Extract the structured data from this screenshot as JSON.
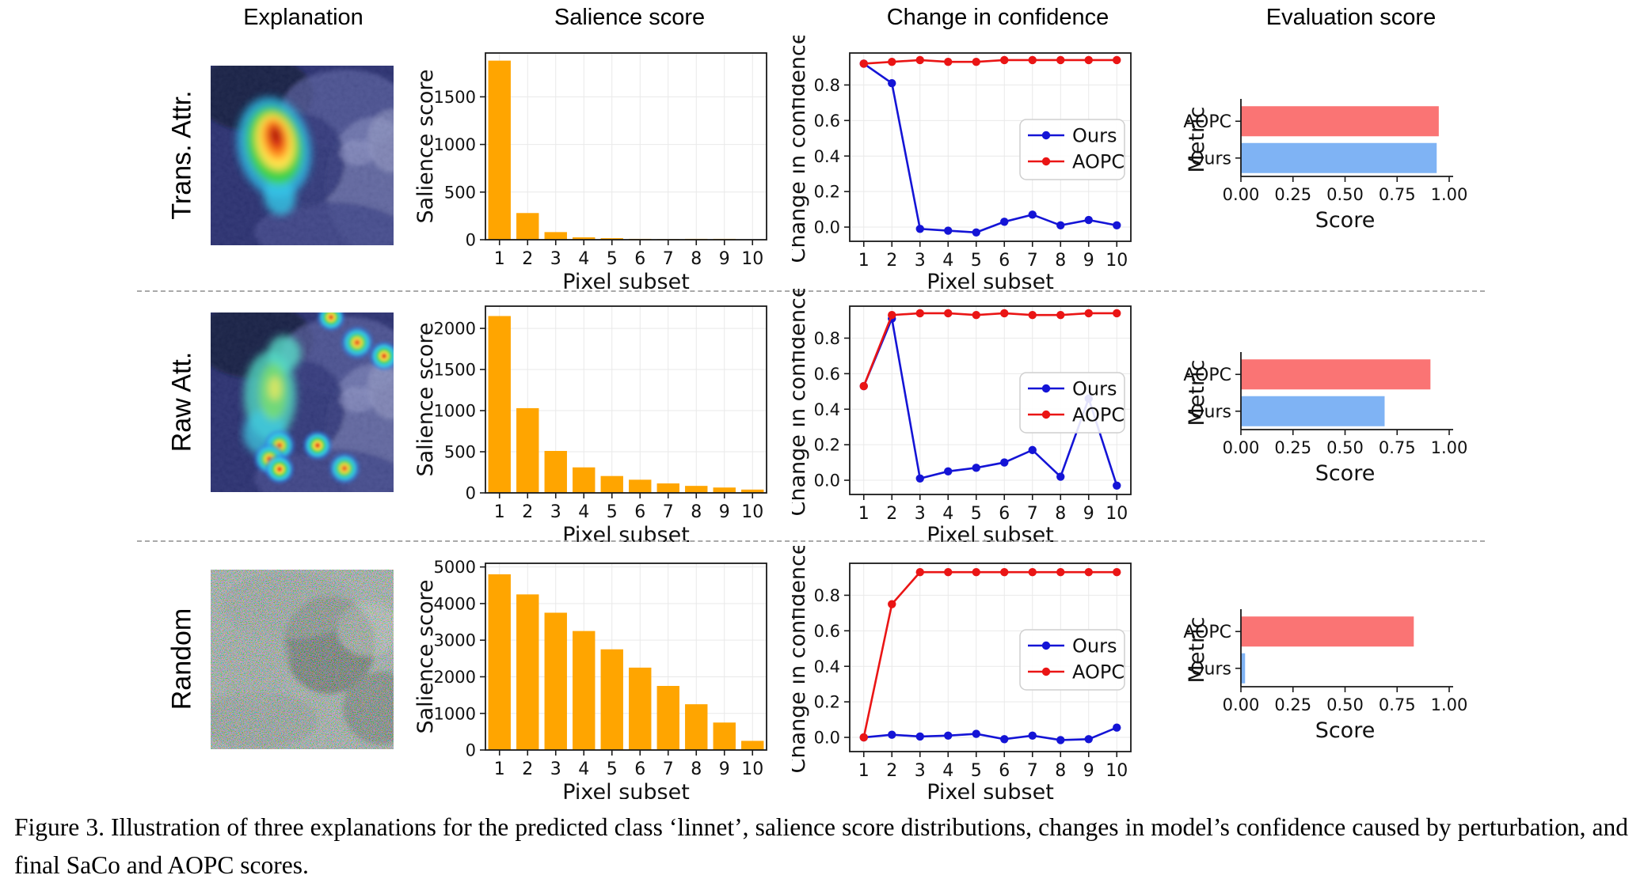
{
  "columns": [
    "Explanation",
    "Salience score",
    "Change in confidence",
    "Evaluation score"
  ],
  "axis_labels": {
    "salience_y": "Salience score",
    "pixel_x": "Pixel subset",
    "confidence_y": "Change in confidence",
    "eval_y": "Metric",
    "eval_x": "Score"
  },
  "colors": {
    "bar_orange": "#FFA500",
    "line_blue": "#1414D6",
    "line_red": "#EA1515",
    "eval_aopc_red": "#FA7474",
    "eval_ours_blue": "#7FB3F4",
    "grid": "#E9E9E9",
    "spine": "#1a1a1a"
  },
  "chart_data": [
    {
      "label": "Trans. Attr.",
      "explanation_image": "transformer-attribution-heatmap-bird-on-rock",
      "salience": {
        "type": "bar",
        "categories": [
          1,
          2,
          3,
          4,
          5,
          6,
          7,
          8,
          9,
          10
        ],
        "values": [
          1880,
          280,
          80,
          25,
          16,
          9,
          7,
          9,
          9,
          3
        ],
        "yticks": [
          0,
          500,
          1000,
          1500
        ],
        "ylim": [
          0,
          1960
        ],
        "xlabel": "Pixel subset",
        "ylabel": "Salience score"
      },
      "confidence": {
        "type": "line",
        "x": [
          1,
          2,
          3,
          4,
          5,
          6,
          7,
          8,
          9,
          10
        ],
        "series": [
          {
            "name": "Ours",
            "values": [
              0.92,
              0.81,
              -0.01,
              -0.02,
              -0.03,
              0.03,
              0.07,
              0.01,
              0.04,
              0.01
            ]
          },
          {
            "name": "AOPC",
            "values": [
              0.92,
              0.93,
              0.94,
              0.93,
              0.93,
              0.94,
              0.94,
              0.94,
              0.94,
              0.94
            ]
          }
        ],
        "yticks": [
          0.0,
          0.2,
          0.4,
          0.6,
          0.8
        ],
        "ylim": [
          -0.08,
          0.98
        ],
        "xlabel": "Pixel subset",
        "ylabel": "Change in confidence",
        "legend": [
          "Ours",
          "AOPC"
        ],
        "legend_position": "center right"
      },
      "evaluation": {
        "type": "bar-h",
        "categories": [
          "AOPC",
          "Ours"
        ],
        "values": [
          0.95,
          0.94
        ],
        "xticks": [
          0.0,
          0.25,
          0.5,
          0.75,
          1.0
        ],
        "xlim": [
          0,
          1.0
        ],
        "xlabel": "Score",
        "ylabel": "Metric"
      }
    },
    {
      "label": "Raw Att.",
      "explanation_image": "raw-attention-heatmap-bird-with-scattered-hotspots",
      "salience": {
        "type": "bar",
        "categories": [
          1,
          2,
          3,
          4,
          5,
          6,
          7,
          8,
          9,
          10
        ],
        "values": [
          2150,
          1030,
          510,
          310,
          205,
          160,
          115,
          85,
          65,
          40
        ],
        "yticks": [
          0,
          500,
          1000,
          1500,
          2000
        ],
        "ylim": [
          0,
          2270
        ],
        "xlabel": "Pixel subset",
        "ylabel": "Salience score"
      },
      "confidence": {
        "type": "line",
        "x": [
          1,
          2,
          3,
          4,
          5,
          6,
          7,
          8,
          9,
          10
        ],
        "series": [
          {
            "name": "Ours",
            "values": [
              0.53,
              0.91,
              0.01,
              0.05,
              0.07,
              0.1,
              0.17,
              0.02,
              0.46,
              -0.03
            ]
          },
          {
            "name": "AOPC",
            "values": [
              0.53,
              0.93,
              0.94,
              0.94,
              0.93,
              0.94,
              0.93,
              0.93,
              0.94,
              0.94
            ]
          }
        ],
        "yticks": [
          0.0,
          0.2,
          0.4,
          0.6,
          0.8
        ],
        "ylim": [
          -0.08,
          0.98
        ],
        "xlabel": "Pixel subset",
        "ylabel": "Change in confidence",
        "legend": [
          "Ours",
          "AOPC"
        ],
        "legend_position": "center right"
      },
      "evaluation": {
        "type": "bar-h",
        "categories": [
          "AOPC",
          "Ours"
        ],
        "values": [
          0.91,
          0.69
        ],
        "xticks": [
          0.0,
          0.25,
          0.5,
          0.75,
          1.0
        ],
        "xlim": [
          0,
          1.0
        ],
        "xlabel": "Score",
        "ylabel": "Metric"
      }
    },
    {
      "label": "Random",
      "explanation_image": "random-noise-image",
      "salience": {
        "type": "bar",
        "categories": [
          1,
          2,
          3,
          4,
          5,
          6,
          7,
          8,
          9,
          10
        ],
        "values": [
          4800,
          4250,
          3750,
          3250,
          2750,
          2250,
          1750,
          1250,
          750,
          250
        ],
        "yticks": [
          0,
          1000,
          2000,
          3000,
          4000,
          5000
        ],
        "ylim": [
          0,
          5100
        ],
        "xlabel": "Pixel subset",
        "ylabel": "Salience score"
      },
      "confidence": {
        "type": "line",
        "x": [
          1,
          2,
          3,
          4,
          5,
          6,
          7,
          8,
          9,
          10
        ],
        "series": [
          {
            "name": "Ours",
            "values": [
              0.0,
              0.015,
              0.005,
              0.01,
              0.02,
              -0.01,
              0.01,
              -0.015,
              -0.01,
              0.055
            ]
          },
          {
            "name": "AOPC",
            "values": [
              0.0,
              0.75,
              0.93,
              0.93,
              0.93,
              0.93,
              0.93,
              0.93,
              0.93,
              0.93
            ]
          }
        ],
        "yticks": [
          0.0,
          0.2,
          0.4,
          0.6,
          0.8
        ],
        "ylim": [
          -0.08,
          0.98
        ],
        "xlabel": "Pixel subset",
        "ylabel": "Change in confidence",
        "legend": [
          "Ours",
          "AOPC"
        ],
        "legend_position": "center right"
      },
      "evaluation": {
        "type": "bar-h",
        "categories": [
          "AOPC",
          "Ours"
        ],
        "values": [
          0.83,
          0.02
        ],
        "xticks": [
          0.0,
          0.25,
          0.5,
          0.75,
          1.0
        ],
        "xlim": [
          0,
          1.0
        ],
        "xlabel": "Score",
        "ylabel": "Metric"
      }
    }
  ],
  "caption": "Figure 3.  Illustration of three explanations for the predicted class ‘linnet’, salience score distributions, changes in model’s confidence caused by perturbation, and final SaCo and AOPC scores."
}
